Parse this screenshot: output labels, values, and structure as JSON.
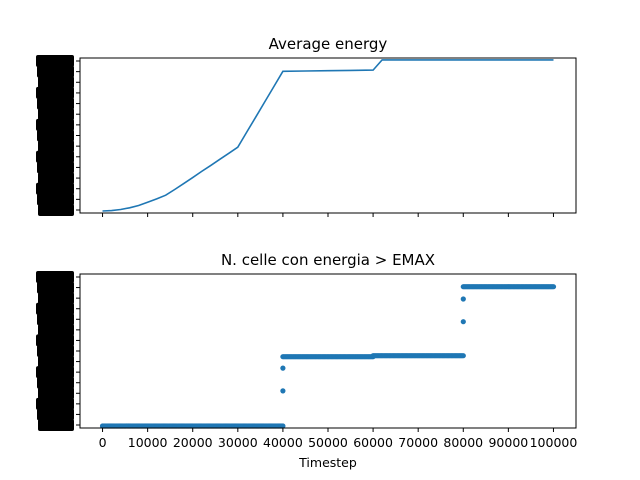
{
  "chart_data": [
    {
      "type": "line",
      "title": "Average energy",
      "xlabel": "",
      "ylabel": "",
      "color": "#1f77b4",
      "grid": false,
      "xlim": [
        -5000,
        105000
      ],
      "ylim": [
        0,
        1
      ],
      "x_tick_labels_visible": false,
      "y_tick_labels_legible": false,
      "series": [
        {
          "x": [
            0,
            2000,
            4000,
            6000,
            8000,
            10000,
            12000,
            14000,
            16000,
            18000,
            20000,
            22000,
            24000,
            26000,
            28000,
            30000,
            32000,
            34000,
            36000,
            38000,
            40000,
            45000,
            50000,
            55000,
            60000,
            61000,
            62000,
            65000,
            70000,
            80000,
            90000,
            100000
          ],
          "y": [
            0.0,
            0.003,
            0.01,
            0.022,
            0.038,
            0.06,
            0.083,
            0.108,
            0.147,
            0.188,
            0.229,
            0.271,
            0.312,
            0.354,
            0.395,
            0.437,
            0.541,
            0.645,
            0.749,
            0.853,
            0.957,
            0.959,
            0.961,
            0.963,
            0.965,
            1.0,
            1.035,
            1.035,
            1.035,
            1.035,
            1.035,
            1.035
          ]
        }
      ]
    },
    {
      "type": "scatter",
      "title": "N. celle con energia > EMAX",
      "xlabel": "Timestep",
      "ylabel": "",
      "color": "#1f77b4",
      "grid": false,
      "xlim": [
        -5000,
        105000
      ],
      "ylim": [
        0,
        1
      ],
      "x_tick_labels": [
        "0",
        "10000",
        "20000",
        "30000",
        "40000",
        "50000",
        "60000",
        "70000",
        "80000",
        "90000",
        "100000"
      ],
      "x_ticks": [
        0,
        10000,
        20000,
        30000,
        40000,
        50000,
        60000,
        70000,
        80000,
        90000,
        100000
      ],
      "y_tick_labels_legible": false,
      "segments": [
        {
          "x_start": 0,
          "x_end": 40000,
          "y": 0.0
        },
        {
          "x_start": 40000,
          "x_end": 60000,
          "y": 0.478
        },
        {
          "x_start": 60000,
          "x_end": 80000,
          "y": 0.485
        },
        {
          "x_start": 80000,
          "x_end": 100000,
          "y": 0.961
        }
      ],
      "outliers": [
        {
          "x": 40000,
          "y": 0.242
        },
        {
          "x": 40000,
          "y": 0.399
        },
        {
          "x": 80000,
          "y": 0.719
        },
        {
          "x": 80000,
          "y": 0.876
        }
      ]
    }
  ]
}
